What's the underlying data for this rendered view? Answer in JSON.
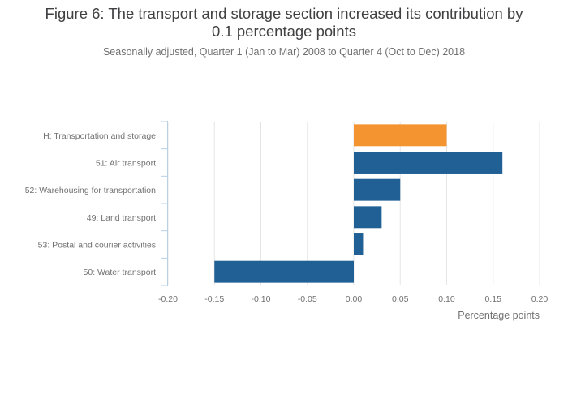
{
  "title_lines": [
    "Figure 6: The transport and storage section increased its contribution by",
    "0.1 percentage points"
  ],
  "subtitle": "Seasonally adjusted, Quarter 1 (Jan to Mar) 2008 to Quarter 4 (Oct to Dec) 2018",
  "colors": {
    "highlight": "#f39431",
    "primary": "#206095",
    "grid": "#e5e5e5",
    "axis": "#b9cfe4",
    "tick_text": "#707071",
    "label_text": "#414042"
  },
  "chart_data": {
    "type": "bar",
    "orientation": "horizontal",
    "categories": [
      "H: Transportation and storage",
      "51: Air transport",
      "52: Warehousing for transportation",
      "49: Land transport",
      "53: Postal and courier activities",
      "50: Water transport"
    ],
    "values": [
      0.1,
      0.16,
      0.05,
      0.03,
      0.01,
      -0.15
    ],
    "highlight_index": 0,
    "xlabel": "Percentage points",
    "xlim": [
      -0.2,
      0.2
    ],
    "xticks": [
      -0.2,
      -0.15,
      -0.1,
      -0.05,
      0.0,
      0.05,
      0.1,
      0.15,
      0.2
    ],
    "xtick_labels": [
      "-0.20",
      "-0.15",
      "-0.10",
      "-0.05",
      "0.00",
      "0.05",
      "0.10",
      "0.15",
      "0.20"
    ],
    "grid": true,
    "legend": false
  }
}
